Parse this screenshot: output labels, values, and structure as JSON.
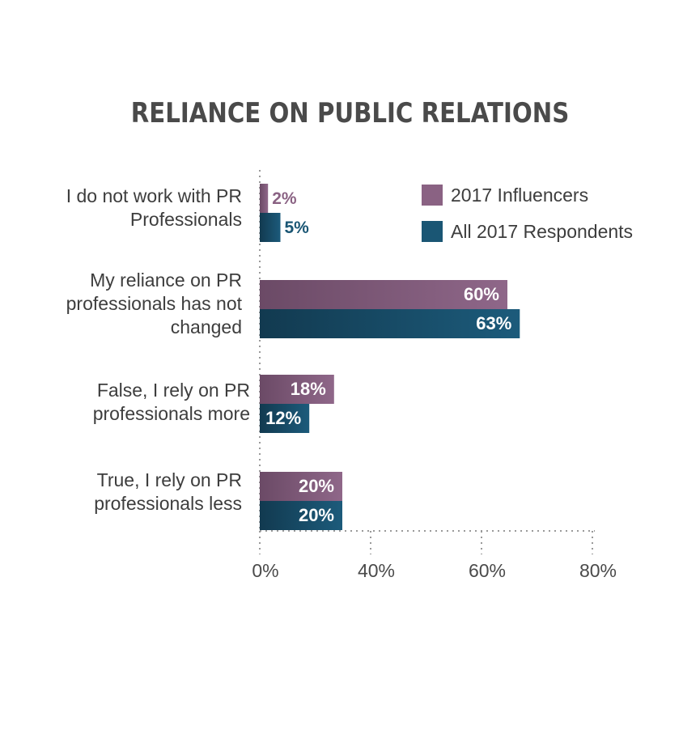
{
  "chart_data": {
    "type": "bar",
    "orientation": "horizontal",
    "title": "RELIANCE ON PUBLIC RELATIONS",
    "categories": [
      [
        "I do not work with PR",
        "Professionals"
      ],
      [
        "My reliance on PR",
        "professionals has not",
        "changed"
      ],
      [
        "False, I rely on PR",
        "professionals more"
      ],
      [
        "True, I rely on PR",
        "professionals less"
      ]
    ],
    "series": [
      {
        "name": "2017 Influencers",
        "values": [
          2,
          60,
          18,
          20
        ],
        "labels": [
          "2%",
          "60%",
          "18%",
          "20%"
        ],
        "color": "#8a6283"
      },
      {
        "name": "All 2017 Respondents",
        "values": [
          5,
          63,
          12,
          20
        ],
        "labels": [
          "5%",
          "63%",
          "12%",
          "20%"
        ],
        "color": "#1a5674"
      }
    ],
    "x_ticks": [
      "0%",
      "40%",
      "60%",
      "80%"
    ],
    "legend_position": "top-right",
    "grid": "dotted vertical"
  }
}
